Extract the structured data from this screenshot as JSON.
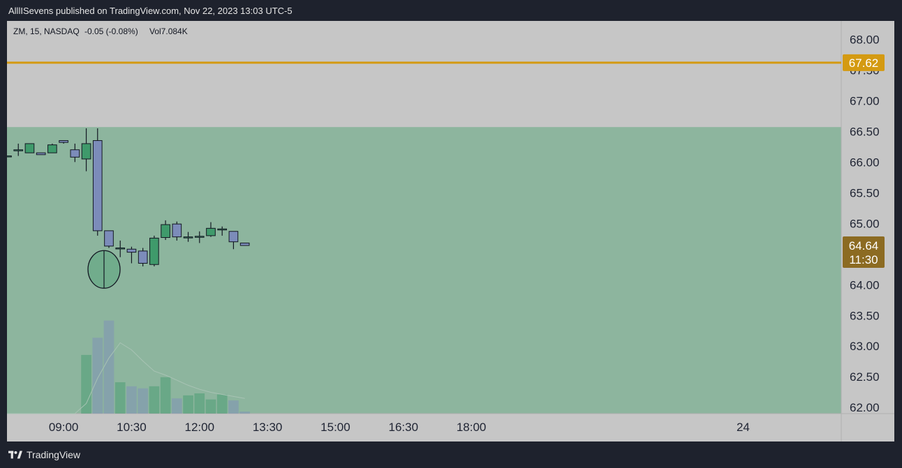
{
  "header": {
    "publish_text": "AlllISevens published on TradingView.com, Nov 22, 2023 13:03 UTC-5"
  },
  "footer": {
    "brand": "TradingView"
  },
  "colors": {
    "page_bg": "#1e222d",
    "chart_bg": "#c6c6c6",
    "zone_fill": "#8db59e",
    "bull": "#3f9a6b",
    "bear": "#7c8cba",
    "level_line": "#d49a12",
    "text": "#131722",
    "axis_text": "#1f2433"
  },
  "chart_data": {
    "type": "candlestick",
    "symbol_line": {
      "symbol": "ZM, 15, NASDAQ",
      "change": "-0.05 (-0.08%)",
      "volume": "Vol7.084K"
    },
    "x_tick_labels": [
      "09:00",
      "10:30",
      "12:00",
      "13:30",
      "15:00",
      "16:30",
      "18:00",
      "24"
    ],
    "y_tick_labels": [
      "68.00",
      "67.50",
      "67.00",
      "66.50",
      "66.00",
      "65.50",
      "65.00",
      "64.50",
      "64.00",
      "63.50",
      "63.00",
      "62.50",
      "62.00"
    ],
    "ylim": [
      61.9,
      68.3
    ],
    "x_range_minutes": [
      465,
      1570
    ],
    "horizontal_level": {
      "value": 67.62,
      "label": "67.62"
    },
    "price_tag": {
      "value": 64.64,
      "label": "64.64",
      "countdown": "11:30"
    },
    "zone": {
      "top": 66.57,
      "bottom": 61.9
    },
    "candles": [
      {
        "t": 465,
        "o": 66.1,
        "h": 66.1,
        "l": 66.1,
        "c": 66.1
      },
      {
        "t": 480,
        "o": 66.2,
        "h": 66.3,
        "l": 66.1,
        "c": 66.2
      },
      {
        "t": 495,
        "o": 66.15,
        "h": 66.3,
        "l": 66.15,
        "c": 66.3
      },
      {
        "t": 510,
        "o": 66.15,
        "h": 66.15,
        "l": 66.12,
        "c": 66.12
      },
      {
        "t": 525,
        "o": 66.15,
        "h": 66.3,
        "l": 66.15,
        "c": 66.28
      },
      {
        "t": 540,
        "o": 66.35,
        "h": 66.35,
        "l": 66.3,
        "c": 66.32
      },
      {
        "t": 555,
        "o": 66.2,
        "h": 66.3,
        "l": 66.0,
        "c": 66.08
      },
      {
        "t": 570,
        "o": 66.05,
        "h": 66.55,
        "l": 65.85,
        "c": 66.3
      },
      {
        "t": 585,
        "o": 66.35,
        "h": 66.55,
        "l": 64.8,
        "c": 64.88
      },
      {
        "t": 600,
        "o": 64.88,
        "h": 64.88,
        "l": 64.6,
        "c": 64.63
      },
      {
        "t": 615,
        "o": 64.6,
        "h": 64.72,
        "l": 64.45,
        "c": 64.6
      },
      {
        "t": 630,
        "o": 64.58,
        "h": 64.62,
        "l": 64.35,
        "c": 64.53
      },
      {
        "t": 645,
        "o": 64.55,
        "h": 64.6,
        "l": 64.3,
        "c": 64.35
      },
      {
        "t": 660,
        "o": 64.33,
        "h": 64.8,
        "l": 64.3,
        "c": 64.76
      },
      {
        "t": 675,
        "o": 64.77,
        "h": 65.05,
        "l": 64.73,
        "c": 64.98
      },
      {
        "t": 690,
        "o": 64.99,
        "h": 65.03,
        "l": 64.72,
        "c": 64.78
      },
      {
        "t": 705,
        "o": 64.78,
        "h": 64.86,
        "l": 64.7,
        "c": 64.78
      },
      {
        "t": 720,
        "o": 64.79,
        "h": 64.87,
        "l": 64.68,
        "c": 64.79
      },
      {
        "t": 735,
        "o": 64.8,
        "h": 65.02,
        "l": 64.78,
        "c": 64.92
      },
      {
        "t": 750,
        "o": 64.91,
        "h": 64.95,
        "l": 64.8,
        "c": 64.91
      },
      {
        "t": 765,
        "o": 64.87,
        "h": 64.87,
        "l": 64.58,
        "c": 64.7
      },
      {
        "t": 780,
        "o": 64.68,
        "h": 64.68,
        "l": 64.64,
        "c": 64.64
      }
    ],
    "volumes": [
      0.0,
      0.0,
      0.0,
      0.0,
      0.0,
      0.0,
      0.0,
      0.58,
      0.75,
      0.92,
      0.31,
      0.27,
      0.25,
      0.27,
      0.36,
      0.15,
      0.18,
      0.2,
      0.14,
      0.19,
      0.13,
      0.02
    ],
    "volume_ma": [
      0.0,
      0.0,
      0.0,
      0.0,
      0.0,
      0.0,
      0.0,
      0.1,
      0.35,
      0.55,
      0.7,
      0.63,
      0.52,
      0.42,
      0.38,
      0.33,
      0.28,
      0.24,
      0.21,
      0.19,
      0.17,
      0.15
    ],
    "circle_annotation": {
      "t": 600,
      "price": 64.25
    },
    "grid": false
  }
}
